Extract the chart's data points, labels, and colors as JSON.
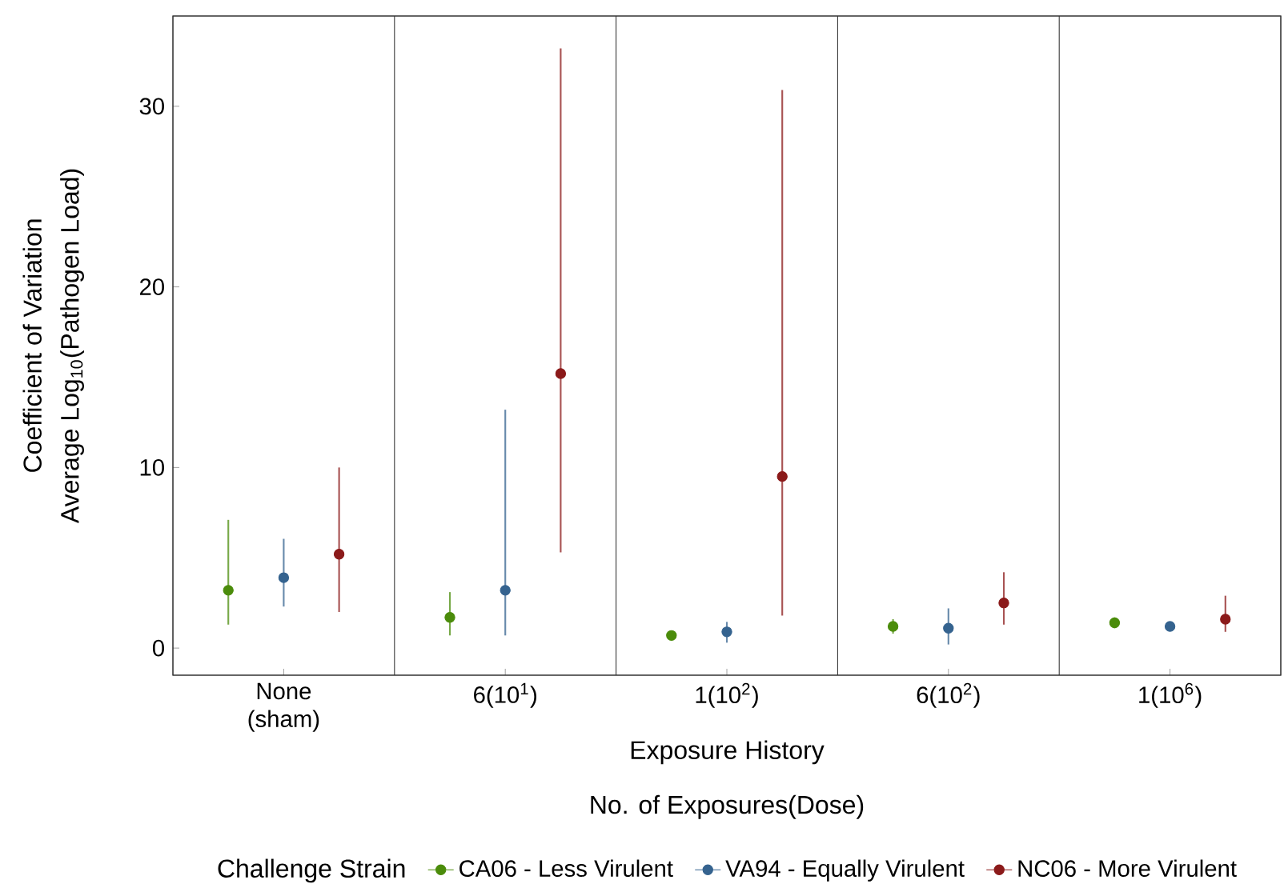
{
  "chart_data": {
    "type": "scatter",
    "ylabel": "Coefficient of Variation",
    "xlabel": "Exposure History",
    "annotations": [
      "Average Log$_{10}$(Pathogen Load)",
      "No. of Exposures(Dose)"
    ],
    "legend_title": "Challenge Strain",
    "categories": [
      "None (sham)",
      "6(10$^{1}$)",
      "1(10$^{2}$)",
      "6(10$^{2}$)",
      "1(10$^{6}$)"
    ],
    "series": [
      {
        "name": "CA06 - Less Virulent",
        "color": "#4b8c0b",
        "values": [
          3.2,
          1.7,
          0.7,
          1.2,
          1.4
        ],
        "errors": [
          [
            1.3,
            7.1
          ],
          [
            0.7,
            3.1
          ],
          [
            0.5,
            0.9
          ],
          [
            0.8,
            1.6
          ],
          [
            1.1,
            1.7
          ]
        ]
      },
      {
        "name": "VA94 - Equally Virulent",
        "color": "#35638f",
        "values": [
          3.9,
          3.2,
          0.9,
          1.1,
          1.2
        ],
        "errors": [
          [
            2.3,
            6.05
          ],
          [
            0.7,
            13.2
          ],
          [
            0.3,
            1.45
          ],
          [
            0.2,
            2.2
          ],
          null
        ]
      },
      {
        "name": "NC06 - More Virulent",
        "color": "#8b1a1a",
        "values": [
          5.2,
          15.2,
          9.5,
          2.5,
          1.6
        ],
        "errors": [
          [
            2.0,
            10.0
          ],
          [
            5.3,
            33.2
          ],
          [
            1.8,
            30.9
          ],
          [
            1.3,
            4.2
          ],
          [
            0.9,
            2.9
          ]
        ]
      }
    ],
    "ylim": [
      -1.5,
      35
    ],
    "yticks": [
      0,
      10,
      20,
      30
    ],
    "legend": "bottom"
  }
}
